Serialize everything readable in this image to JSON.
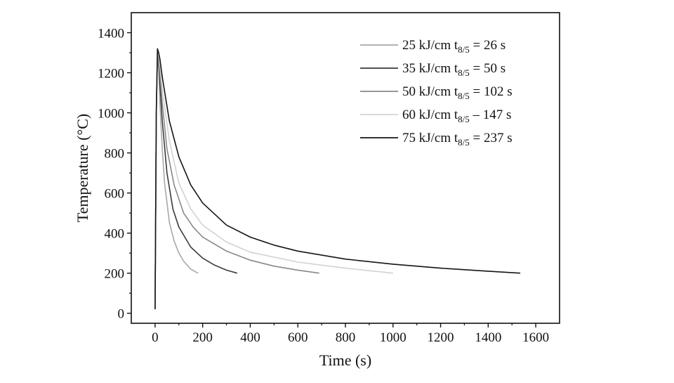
{
  "chart_data": {
    "type": "line",
    "title": "",
    "xlabel": "Time (s)",
    "ylabel": "Temperature (°C)",
    "xlim": [
      -100,
      1700
    ],
    "ylim": [
      -50,
      1500
    ],
    "xticks": [
      0,
      200,
      400,
      600,
      800,
      1000,
      1200,
      1400,
      1600
    ],
    "xtick_labels": [
      "0",
      "200",
      "400",
      "600",
      "800",
      "1000",
      "1200",
      "1400",
      "1600"
    ],
    "yticks": [
      0,
      200,
      400,
      600,
      800,
      1000,
      1200,
      1400
    ],
    "ytick_labels": [
      "0",
      "200",
      "400",
      "600",
      "800",
      "1000",
      "1200",
      "1400"
    ],
    "grid": false,
    "legend_position": "top-right",
    "series": [
      {
        "energy": "25 kJ/cm",
        "t_base": "t",
        "t_sub": "8/5",
        "t_rel": "=",
        "t_value": "26 s",
        "color": "#a8a8a8",
        "x": [
          0,
          5,
          10,
          15,
          20,
          30,
          40,
          60,
          80,
          100,
          120,
          150,
          180
        ],
        "y": [
          20,
          1000,
          1300,
          1230,
          1050,
          820,
          650,
          455,
          360,
          300,
          260,
          220,
          200
        ]
      },
      {
        "energy": "35 kJ/cm",
        "t_base": "t",
        "t_sub": "8/5",
        "t_rel": "=",
        "t_value": "50 s",
        "color": "#3a3a3a",
        "x": [
          0,
          5,
          10,
          15,
          20,
          30,
          50,
          75,
          100,
          150,
          200,
          250,
          300,
          345
        ],
        "y": [
          20,
          1000,
          1300,
          1260,
          1150,
          960,
          700,
          520,
          430,
          330,
          275,
          240,
          215,
          200
        ]
      },
      {
        "energy": "50 kJ/cm",
        "t_base": "t",
        "t_sub": "8/5",
        "t_rel": "=",
        "t_value": "102 s",
        "color": "#888888",
        "x": [
          0,
          5,
          10,
          15,
          20,
          30,
          50,
          80,
          120,
          160,
          200,
          300,
          400,
          500,
          600,
          690
        ],
        "y": [
          20,
          1000,
          1310,
          1280,
          1200,
          1050,
          820,
          640,
          500,
          430,
          380,
          310,
          265,
          235,
          215,
          200
        ]
      },
      {
        "energy": "60 kJ/cm",
        "t_base": "t",
        "t_sub": "8/5",
        "t_rel": "–",
        "t_value": "147 s",
        "color": "#d2d2d2",
        "x": [
          0,
          5,
          10,
          15,
          20,
          30,
          60,
          100,
          150,
          200,
          300,
          400,
          600,
          800,
          1000
        ],
        "y": [
          20,
          1000,
          1310,
          1290,
          1240,
          1120,
          860,
          650,
          520,
          440,
          355,
          305,
          255,
          225,
          200
        ]
      },
      {
        "energy": "75 kJ/cm",
        "t_base": "t",
        "t_sub": "8/5",
        "t_rel": "=",
        "t_value": "237 s",
        "color": "#151515",
        "x": [
          0,
          5,
          10,
          15,
          20,
          30,
          60,
          100,
          150,
          200,
          300,
          400,
          500,
          600,
          800,
          1000,
          1200,
          1400,
          1535
        ],
        "y": [
          20,
          1000,
          1320,
          1300,
          1270,
          1180,
          960,
          780,
          640,
          550,
          440,
          380,
          340,
          310,
          270,
          245,
          225,
          210,
          200
        ]
      }
    ]
  }
}
